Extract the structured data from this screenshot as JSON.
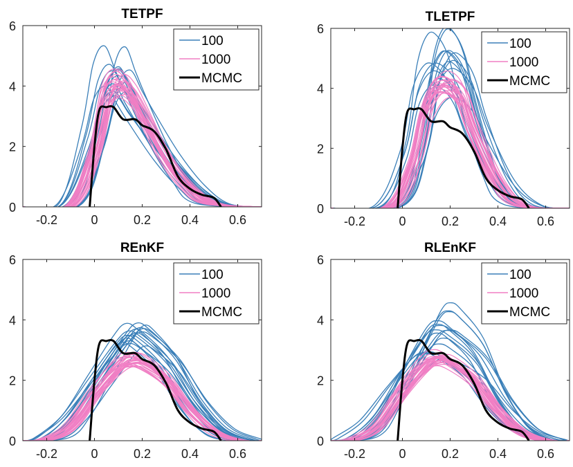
{
  "chart_data": [
    {
      "type": "line",
      "title": "TETPF",
      "xlim": [
        -0.3,
        0.7
      ],
      "ylim": [
        0,
        6
      ],
      "xticks": [
        -0.2,
        0,
        0.2,
        0.4,
        0.6
      ],
      "xtick_labels": [
        "-0.2",
        "0",
        "0.2",
        "0.4",
        "0.6"
      ],
      "yticks": [
        0,
        2,
        4,
        6
      ],
      "ytick_labels": [
        "0",
        "2",
        "4",
        "6"
      ],
      "legend": {
        "location": "top-right",
        "entries": [
          "100",
          "1000",
          "MCMC"
        ]
      },
      "series": [
        {
          "name": "100",
          "color": "#3a7fb8",
          "note": "ensemble of density estimates",
          "x": [
            -0.1,
            0.0,
            0.05,
            0.1,
            0.15,
            0.2,
            0.3,
            0.4,
            0.5
          ],
          "y": [
            0.1,
            2.2,
            3.9,
            4.4,
            3.7,
            3.0,
            1.7,
            0.7,
            0.1
          ]
        },
        {
          "name": "1000",
          "color": "#f07fc4",
          "note": "ensemble of density estimates",
          "x": [
            -0.1,
            0.0,
            0.05,
            0.1,
            0.15,
            0.2,
            0.3,
            0.4,
            0.5
          ],
          "y": [
            0.05,
            1.8,
            3.6,
            4.1,
            3.8,
            3.1,
            1.6,
            0.6,
            0.1
          ]
        },
        {
          "name": "MCMC",
          "color": "#000000",
          "x": [
            -0.02,
            0.0,
            0.02,
            0.05,
            0.08,
            0.12,
            0.17,
            0.2,
            0.25,
            0.3,
            0.35,
            0.4,
            0.45,
            0.5,
            0.53
          ],
          "y": [
            0,
            2.0,
            3.2,
            3.3,
            3.3,
            2.9,
            2.9,
            2.7,
            2.5,
            1.9,
            1.0,
            0.6,
            0.4,
            0.3,
            0
          ]
        }
      ]
    },
    {
      "type": "line",
      "title": "TLETPF",
      "xlim": [
        -0.3,
        0.7
      ],
      "ylim": [
        0,
        6
      ],
      "xticks": [
        -0.2,
        0,
        0.2,
        0.4,
        0.6
      ],
      "xtick_labels": [
        "-0.2",
        "0",
        "0.2",
        "0.4",
        "0.6"
      ],
      "yticks": [
        0,
        2,
        4,
        6
      ],
      "ytick_labels": [
        "0",
        "2",
        "4",
        "6"
      ],
      "legend": {
        "location": "top-right",
        "entries": [
          "100",
          "1000",
          "MCMC"
        ]
      },
      "series": [
        {
          "name": "100",
          "color": "#3a7fb8",
          "note": "ensemble of density estimates",
          "x": [
            -0.05,
            0.05,
            0.1,
            0.15,
            0.2,
            0.25,
            0.3,
            0.4,
            0.5
          ],
          "y": [
            0.1,
            1.8,
            3.8,
            4.6,
            4.5,
            3.9,
            2.7,
            0.9,
            0.1
          ]
        },
        {
          "name": "1000",
          "color": "#f07fc4",
          "note": "ensemble of density estimates",
          "x": [
            -0.05,
            0.05,
            0.1,
            0.15,
            0.2,
            0.25,
            0.3,
            0.4,
            0.5
          ],
          "y": [
            0.05,
            1.5,
            3.2,
            4.0,
            4.1,
            3.7,
            2.6,
            0.9,
            0.1
          ]
        },
        {
          "name": "MCMC",
          "color": "#000000",
          "x": [
            -0.02,
            0.0,
            0.02,
            0.05,
            0.08,
            0.12,
            0.17,
            0.2,
            0.25,
            0.3,
            0.35,
            0.4,
            0.45,
            0.5,
            0.53
          ],
          "y": [
            0,
            2.0,
            3.2,
            3.3,
            3.3,
            2.9,
            2.9,
            2.7,
            2.5,
            1.9,
            1.0,
            0.6,
            0.4,
            0.3,
            0
          ]
        }
      ]
    },
    {
      "type": "line",
      "title": "REnKF",
      "xlim": [
        -0.3,
        0.7
      ],
      "ylim": [
        0,
        6
      ],
      "xticks": [
        -0.2,
        0,
        0.2,
        0.4,
        0.6
      ],
      "xtick_labels": [
        "-0.2",
        "0",
        "0.2",
        "0.4",
        "0.6"
      ],
      "yticks": [
        0,
        2,
        4,
        6
      ],
      "ytick_labels": [
        "0",
        "2",
        "4",
        "6"
      ],
      "legend": {
        "location": "top-right",
        "entries": [
          "100",
          "1000",
          "MCMC"
        ]
      },
      "series": [
        {
          "name": "100",
          "color": "#3a7fb8",
          "note": "ensemble of density estimates",
          "x": [
            -0.2,
            -0.1,
            0.0,
            0.1,
            0.15,
            0.2,
            0.3,
            0.4,
            0.5,
            0.6
          ],
          "y": [
            0.1,
            0.8,
            2.0,
            3.2,
            3.6,
            3.4,
            2.6,
            1.3,
            0.4,
            0.05
          ]
        },
        {
          "name": "1000",
          "color": "#f07fc4",
          "note": "ensemble of density estimates",
          "x": [
            -0.2,
            -0.1,
            0.0,
            0.1,
            0.15,
            0.2,
            0.3,
            0.4,
            0.5,
            0.6
          ],
          "y": [
            0.05,
            0.5,
            1.6,
            2.5,
            2.7,
            2.6,
            2.0,
            1.0,
            0.3,
            0.02
          ]
        },
        {
          "name": "MCMC",
          "color": "#000000",
          "x": [
            -0.02,
            0.0,
            0.02,
            0.05,
            0.08,
            0.12,
            0.17,
            0.2,
            0.25,
            0.3,
            0.35,
            0.4,
            0.45,
            0.5,
            0.53
          ],
          "y": [
            0,
            2.0,
            3.2,
            3.3,
            3.3,
            2.9,
            2.9,
            2.7,
            2.5,
            1.9,
            1.0,
            0.6,
            0.4,
            0.3,
            0
          ]
        }
      ]
    },
    {
      "type": "line",
      "title": "RLEnKF",
      "xlim": [
        -0.3,
        0.7
      ],
      "ylim": [
        0,
        6
      ],
      "xticks": [
        -0.2,
        0,
        0.2,
        0.4,
        0.6
      ],
      "xtick_labels": [
        "-0.2",
        "0",
        "0.2",
        "0.4",
        "0.6"
      ],
      "yticks": [
        0,
        2,
        4,
        6
      ],
      "ytick_labels": [
        "0",
        "2",
        "4",
        "6"
      ],
      "legend": {
        "location": "top-right",
        "entries": [
          "100",
          "1000",
          "MCMC"
        ]
      },
      "series": [
        {
          "name": "100",
          "color": "#3a7fb8",
          "note": "ensemble of density estimates",
          "x": [
            -0.2,
            -0.1,
            0.0,
            0.1,
            0.15,
            0.2,
            0.3,
            0.4,
            0.5,
            0.6
          ],
          "y": [
            0.1,
            0.8,
            2.1,
            3.3,
            3.5,
            3.3,
            2.6,
            1.3,
            0.4,
            0.05
          ]
        },
        {
          "name": "1000",
          "color": "#f07fc4",
          "note": "ensemble of density estimates",
          "x": [
            -0.2,
            -0.1,
            0.0,
            0.1,
            0.15,
            0.2,
            0.3,
            0.4,
            0.5,
            0.6
          ],
          "y": [
            0.05,
            0.5,
            1.6,
            2.5,
            2.7,
            2.6,
            2.0,
            1.0,
            0.3,
            0.02
          ]
        },
        {
          "name": "MCMC",
          "color": "#000000",
          "x": [
            -0.02,
            0.0,
            0.02,
            0.05,
            0.08,
            0.12,
            0.17,
            0.2,
            0.25,
            0.3,
            0.35,
            0.4,
            0.45,
            0.5,
            0.53
          ],
          "y": [
            0,
            2.0,
            3.2,
            3.3,
            3.3,
            2.9,
            2.9,
            2.7,
            2.5,
            1.9,
            1.0,
            0.6,
            0.4,
            0.3,
            0
          ]
        }
      ]
    }
  ]
}
